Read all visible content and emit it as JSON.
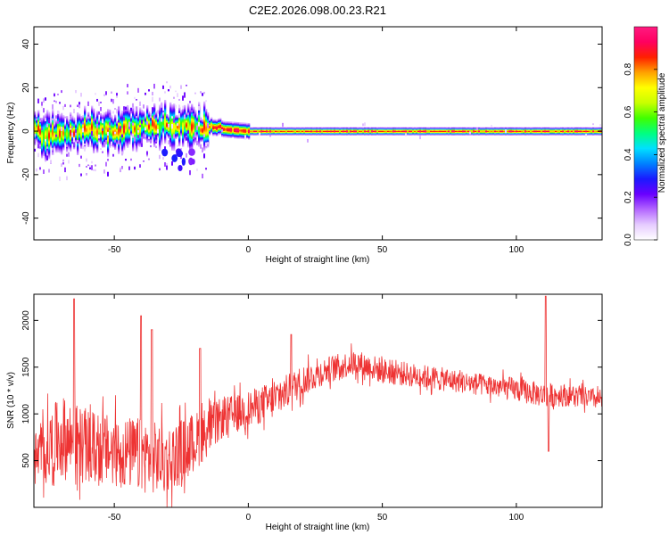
{
  "title": "C2E2.2026.098.00.23.R21",
  "chart_data": [
    {
      "type": "heatmap",
      "xlabel": "Height of straight line (km)",
      "ylabel": "Frequency (Hz)",
      "xlim": [
        -80,
        132
      ],
      "ylim": [
        -50,
        48
      ],
      "x_ticks": [
        -50,
        0,
        50,
        100
      ],
      "x_tick_labels": [
        "-50",
        "0",
        "50",
        "100"
      ],
      "y_ticks": [
        -40,
        -20,
        0,
        20,
        40
      ],
      "y_tick_labels": [
        "-40",
        "-20",
        "0",
        "20",
        "40"
      ],
      "colorbar": {
        "label": "Normalized spectral amplitude",
        "range": [
          0,
          1
        ],
        "ticks": [
          0.0,
          0.2,
          0.4,
          0.6,
          0.8
        ],
        "tick_labels": [
          "0.0",
          "0.2",
          "0.4",
          "0.6",
          "0.8"
        ],
        "colors": [
          "#ffffff",
          "#e6ccff",
          "#b366ff",
          "#6a00ff",
          "#1a1aff",
          "#0080ff",
          "#00e0ff",
          "#00ff80",
          "#40ff00",
          "#c8ff00",
          "#ffff00",
          "#ffa000",
          "#ff2000",
          "#ff0060",
          "#ff1a80"
        ]
      },
      "ridge": {
        "description": "Dominant spectral line near 0-4 Hz across heights",
        "points": [
          {
            "x": -78,
            "y": -2
          },
          {
            "x": -70,
            "y": -1
          },
          {
            "x": -60,
            "y": 1
          },
          {
            "x": -50,
            "y": 0
          },
          {
            "x": -40,
            "y": 2
          },
          {
            "x": -30,
            "y": 3
          },
          {
            "x": -20,
            "y": 2
          },
          {
            "x": -10,
            "y": 1
          },
          {
            "x": 0,
            "y": 0
          },
          {
            "x": 10,
            "y": 0
          },
          {
            "x": 50,
            "y": 0
          },
          {
            "x": 100,
            "y": 0
          },
          {
            "x": 132,
            "y": 0
          }
        ]
      }
    },
    {
      "type": "line",
      "xlabel": "Height of straight line (km)",
      "ylabel": "SNR (10 * v/v)",
      "xlim": [
        -80,
        132
      ],
      "ylim": [
        0,
        2280
      ],
      "x_ticks": [
        -50,
        0,
        50,
        100
      ],
      "x_tick_labels": [
        "-50",
        "0",
        "50",
        "100"
      ],
      "y_ticks": [
        500,
        1000,
        1500,
        2000
      ],
      "y_tick_labels": [
        "500",
        "1000",
        "1500",
        "2000"
      ],
      "series": [
        {
          "name": "SNR",
          "color": "#ee3333",
          "envelope": [
            {
              "x": -80,
              "mean": 500,
              "spread": 300
            },
            {
              "x": -70,
              "mean": 750,
              "spread": 450
            },
            {
              "x": -60,
              "mean": 650,
              "spread": 400
            },
            {
              "x": -50,
              "mean": 600,
              "spread": 380
            },
            {
              "x": -40,
              "mean": 560,
              "spread": 400
            },
            {
              "x": -30,
              "mean": 500,
              "spread": 380
            },
            {
              "x": -20,
              "mean": 700,
              "spread": 320
            },
            {
              "x": -10,
              "mean": 950,
              "spread": 220
            },
            {
              "x": 0,
              "mean": 1050,
              "spread": 200
            },
            {
              "x": 10,
              "mean": 1150,
              "spread": 200
            },
            {
              "x": 20,
              "mean": 1350,
              "spread": 170
            },
            {
              "x": 30,
              "mean": 1480,
              "spread": 140
            },
            {
              "x": 40,
              "mean": 1550,
              "spread": 140
            },
            {
              "x": 50,
              "mean": 1460,
              "spread": 140
            },
            {
              "x": 60,
              "mean": 1420,
              "spread": 130
            },
            {
              "x": 70,
              "mean": 1380,
              "spread": 130
            },
            {
              "x": 80,
              "mean": 1340,
              "spread": 120
            },
            {
              "x": 90,
              "mean": 1300,
              "spread": 120
            },
            {
              "x": 100,
              "mean": 1260,
              "spread": 130
            },
            {
              "x": 110,
              "mean": 1200,
              "spread": 130
            },
            {
              "x": 120,
              "mean": 1200,
              "spread": 120
            },
            {
              "x": 132,
              "mean": 1150,
              "spread": 110
            }
          ],
          "spikes": [
            {
              "x": -65,
              "value": 2230
            },
            {
              "x": -40,
              "value": 2050
            },
            {
              "x": -36,
              "value": 1900
            },
            {
              "x": -18,
              "value": 1700
            },
            {
              "x": 16,
              "value": 1850
            },
            {
              "x": 111,
              "value": 2260
            },
            {
              "x": 112,
              "value": 600
            }
          ]
        }
      ]
    }
  ]
}
